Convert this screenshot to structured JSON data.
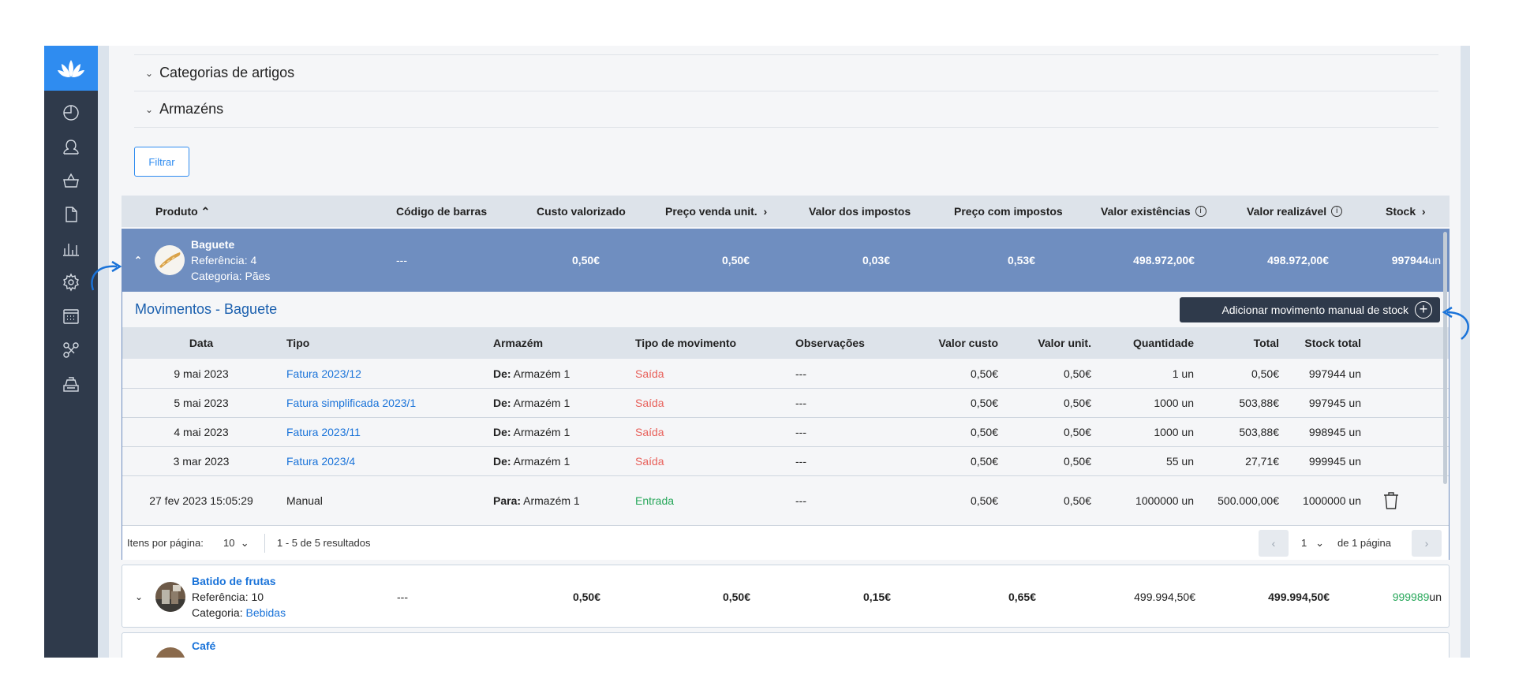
{
  "sidebar": {
    "logo_icon": "lotus-logo-icon",
    "items": [
      {
        "icon": "dashboard-icon"
      },
      {
        "icon": "user-icon"
      },
      {
        "icon": "basket-icon"
      },
      {
        "icon": "document-icon"
      },
      {
        "icon": "chart-icon"
      },
      {
        "icon": "gear-icon"
      },
      {
        "icon": "calendar-icon"
      },
      {
        "icon": "integrations-icon"
      },
      {
        "icon": "cash-register-icon"
      }
    ],
    "bg_color": "#2f3a4b",
    "accent_color": "#2f8cf0"
  },
  "filters": {
    "sections": [
      "Categorias de artigos",
      "Armazéns"
    ],
    "filter_button": "Filtrar"
  },
  "products_table": {
    "headers": {
      "produto": "Produto",
      "codigo_barras": "Código de barras",
      "custo_valorizado": "Custo valorizado",
      "preco_venda": "Preço venda unit.",
      "valor_impostos": "Valor dos impostos",
      "preco_com_impostos": "Preço com impostos",
      "valor_existencias": "Valor existências",
      "valor_realizavel": "Valor realizável",
      "stock": "Stock"
    },
    "rows": [
      {
        "name": "Baguete",
        "reference": "Referência: 4",
        "category_label": "Categoria: ",
        "category": "Pães",
        "barcode": "---",
        "custo": "0,50€",
        "preco_venda": "0,50€",
        "impostos": "0,03€",
        "preco_com_impostos": "0,53€",
        "valor_existencias": "498.972,00€",
        "valor_realizavel": "498.972,00€",
        "stock_value": "997944",
        "stock_unit": " un"
      },
      {
        "name": "Batido de frutas",
        "reference": "Referência: 10",
        "category_label": "Categoria: ",
        "category": "Bebidas",
        "barcode": "---",
        "custo": "0,50€",
        "preco_venda": "0,50€",
        "impostos": "0,15€",
        "preco_com_impostos": "0,65€",
        "valor_existencias": "499.994,50€",
        "valor_realizavel": "499.994,50€",
        "stock_value": "999989",
        "stock_unit": " un"
      },
      {
        "name": "Café"
      }
    ]
  },
  "movements": {
    "title": "Movimentos - Baguete",
    "add_button": "Adicionar movimento manual de stock",
    "headers": {
      "data": "Data",
      "tipo": "Tipo",
      "armazem": "Armazém",
      "tipo_movimento": "Tipo de movimento",
      "observacoes": "Observações",
      "valor_custo": "Valor custo",
      "valor_unit": "Valor unit.",
      "quantidade": "Quantidade",
      "total": "Total",
      "stock_total": "Stock total"
    },
    "rows": [
      {
        "data": "9 mai 2023",
        "tipo": "Fatura 2023/12",
        "dir": "De:",
        "armazem": " Armazém 1",
        "mov": "Saída",
        "obs": "---",
        "custo": "0,50€",
        "unit": "0,50€",
        "qtd": "1 un",
        "total": "0,50€",
        "stock": "997944 un"
      },
      {
        "data": "5 mai 2023",
        "tipo": "Fatura simplificada 2023/1",
        "dir": "De:",
        "armazem": " Armazém 1",
        "mov": "Saída",
        "obs": "---",
        "custo": "0,50€",
        "unit": "0,50€",
        "qtd": "1000 un",
        "total": "503,88€",
        "stock": "997945 un"
      },
      {
        "data": "4 mai 2023",
        "tipo": "Fatura 2023/11",
        "dir": "De:",
        "armazem": " Armazém 1",
        "mov": "Saída",
        "obs": "---",
        "custo": "0,50€",
        "unit": "0,50€",
        "qtd": "1000 un",
        "total": "503,88€",
        "stock": "998945 un"
      },
      {
        "data": "3 mar 2023",
        "tipo": "Fatura 2023/4",
        "dir": "De:",
        "armazem": " Armazém 1",
        "mov": "Saída",
        "obs": "---",
        "custo": "0,50€",
        "unit": "0,50€",
        "qtd": "55 un",
        "total": "27,71€",
        "stock": "999945 un"
      },
      {
        "data": "27 fev 2023 15:05:29",
        "tipo": "Manual",
        "dir": "Para:",
        "armazem": " Armazém 1",
        "mov": "Entrada",
        "obs": "---",
        "custo": "0,50€",
        "unit": "0,50€",
        "qtd": "1000000 un",
        "total": "500.000,00€",
        "stock": "1000000 un"
      }
    ],
    "footer": {
      "per_page_label": "Itens por página:",
      "per_page_value": "10",
      "results": "1 - 5 de 5 resultados",
      "current_page": "1",
      "of_pages": "de 1 página"
    }
  }
}
